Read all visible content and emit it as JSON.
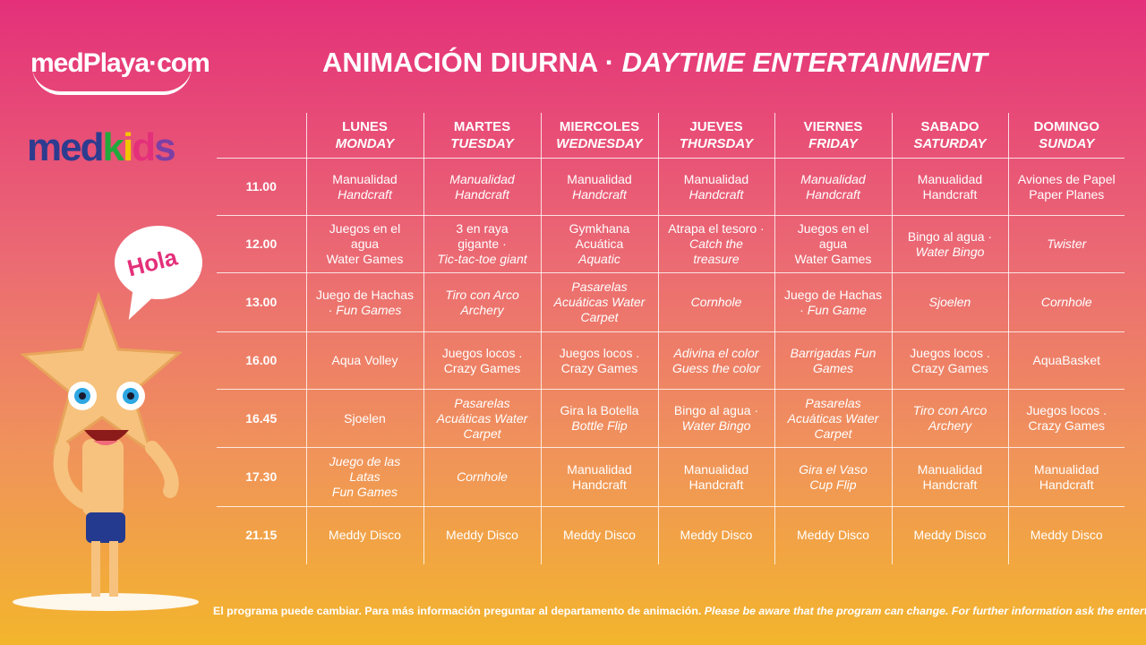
{
  "logo": {
    "brand": "medPlaya·com",
    "kids_med": "med",
    "kids_k": "k",
    "kids_i": "i",
    "kids_d": "d",
    "kids_s": "s"
  },
  "bubble_text": "Hola",
  "title": {
    "spanish": "ANIMACIÓN DIURNA · ",
    "english": "DAYTIME ENTERTAINMENT"
  },
  "days": [
    {
      "es": "LUNES",
      "en": "MONDAY"
    },
    {
      "es": "MARTES",
      "en": "TUESDAY"
    },
    {
      "es": "MIERCOLES",
      "en": "WEDNESDAY"
    },
    {
      "es": "JUEVES",
      "en": "THURSDAY"
    },
    {
      "es": "VIERNES",
      "en": "FRIDAY"
    },
    {
      "es": "SABADO",
      "en": "SATURDAY"
    },
    {
      "es": "DOMINGO",
      "en": "SUNDAY"
    }
  ],
  "rows": [
    {
      "time": "11.00",
      "cells": [
        {
          "lines": [
            {
              "t": "Manualidad",
              "i": false
            },
            {
              "t": "Handcraft",
              "i": true
            }
          ]
        },
        {
          "lines": [
            {
              "t": "Manualidad",
              "i": true
            },
            {
              "t": "Handcraft",
              "i": true
            }
          ]
        },
        {
          "lines": [
            {
              "t": "Manualidad",
              "i": false
            },
            {
              "t": "Handcraft",
              "i": true
            }
          ]
        },
        {
          "lines": [
            {
              "t": "Manualidad",
              "i": false
            },
            {
              "t": "Handcraft",
              "i": true
            }
          ]
        },
        {
          "lines": [
            {
              "t": "Manualidad",
              "i": true
            },
            {
              "t": "Handcraft",
              "i": true
            }
          ]
        },
        {
          "lines": [
            {
              "t": "Manualidad",
              "i": false
            },
            {
              "t": "Handcraft",
              "i": false
            }
          ]
        },
        {
          "lines": [
            {
              "t": "Aviones de Papel",
              "i": false
            },
            {
              "t": "Paper Planes",
              "i": false
            }
          ]
        }
      ]
    },
    {
      "time": "12.00",
      "cells": [
        {
          "lines": [
            {
              "t": "Juegos en el",
              "i": false
            },
            {
              "t": "agua",
              "i": false
            },
            {
              "t": "Water Games",
              "i": false
            }
          ]
        },
        {
          "lines": [
            {
              "t": "3 en raya",
              "i": false
            },
            {
              "t": "gigante ·",
              "i": false
            },
            {
              "t": "Tic-tac-toe giant",
              "i": true
            }
          ]
        },
        {
          "lines": [
            {
              "t": "Gymkhana",
              "i": false
            },
            {
              "t": "Acuática",
              "i": false
            },
            {
              "t": "Aquatic",
              "i": true
            }
          ]
        },
        {
          "lines": [
            {
              "t": "Atrapa el tesoro ·",
              "i": false
            },
            {
              "t": "Catch the",
              "i": true
            },
            {
              "t": "treasure",
              "i": true
            }
          ]
        },
        {
          "lines": [
            {
              "t": "Juegos en el",
              "i": false
            },
            {
              "t": "agua",
              "i": false
            },
            {
              "t": "Water Games",
              "i": false
            }
          ]
        },
        {
          "lines": [
            {
              "t": "Bingo al agua ·",
              "i": false
            },
            {
              "t": "Water Bingo",
              "i": true
            }
          ]
        },
        {
          "lines": [
            {
              "t": "Twister",
              "i": true
            }
          ]
        }
      ]
    },
    {
      "time": "13.00",
      "cells": [
        {
          "lines": [
            {
              "t": "Juego de Hachas",
              "i": false
            },
            {
              "t": "· Fun Games",
              "i": true
            }
          ]
        },
        {
          "lines": [
            {
              "t": "Tiro con Arco",
              "i": true
            },
            {
              "t": "Archery",
              "i": true
            }
          ]
        },
        {
          "lines": [
            {
              "t": "Pasarelas",
              "i": true
            },
            {
              "t": "Acuáticas Water",
              "i": true
            },
            {
              "t": "Carpet",
              "i": true
            }
          ]
        },
        {
          "lines": [
            {
              "t": "Cornhole",
              "i": true
            }
          ]
        },
        {
          "lines": [
            {
              "t": "Juego de Hachas",
              "i": false
            },
            {
              "t": "· Fun Game",
              "i": true
            }
          ]
        },
        {
          "lines": [
            {
              "t": "Sjoelen",
              "i": true
            }
          ]
        },
        {
          "lines": [
            {
              "t": "Cornhole",
              "i": true
            }
          ]
        }
      ]
    },
    {
      "time": "16.00",
      "cells": [
        {
          "lines": [
            {
              "t": "Aqua Volley",
              "i": false
            }
          ]
        },
        {
          "lines": [
            {
              "t": "Juegos locos .",
              "i": false
            },
            {
              "t": "Crazy Games",
              "i": false
            }
          ]
        },
        {
          "lines": [
            {
              "t": "Juegos locos .",
              "i": false
            },
            {
              "t": "Crazy Games",
              "i": false
            }
          ]
        },
        {
          "lines": [
            {
              "t": "Adivina el color",
              "i": true
            },
            {
              "t": "Guess the color",
              "i": true
            }
          ]
        },
        {
          "lines": [
            {
              "t": "Barrigadas  Fun",
              "i": true
            },
            {
              "t": "Games",
              "i": true
            }
          ]
        },
        {
          "lines": [
            {
              "t": "Juegos locos .",
              "i": false
            },
            {
              "t": "Crazy Games",
              "i": false
            }
          ]
        },
        {
          "lines": [
            {
              "t": "AquaBasket",
              "i": false
            }
          ]
        }
      ]
    },
    {
      "time": "16.45",
      "cells": [
        {
          "lines": [
            {
              "t": "Sjoelen",
              "i": false
            }
          ]
        },
        {
          "lines": [
            {
              "t": "Pasarelas",
              "i": true
            },
            {
              "t": "Acuáticas Water",
              "i": true
            },
            {
              "t": "Carpet",
              "i": true
            }
          ]
        },
        {
          "lines": [
            {
              "t": "Gira la Botella",
              "i": false
            },
            {
              "t": "Bottle Flip",
              "i": true
            }
          ]
        },
        {
          "lines": [
            {
              "t": "Bingo al agua ·",
              "i": false
            },
            {
              "t": "Water Bingo",
              "i": true
            }
          ]
        },
        {
          "lines": [
            {
              "t": "Pasarelas",
              "i": true
            },
            {
              "t": "Acuáticas Water",
              "i": true
            },
            {
              "t": "Carpet",
              "i": true
            }
          ]
        },
        {
          "lines": [
            {
              "t": "Tiro con Arco",
              "i": true
            },
            {
              "t": "Archery",
              "i": true
            }
          ]
        },
        {
          "lines": [
            {
              "t": "Juegos locos .",
              "i": false
            },
            {
              "t": "Crazy Games",
              "i": false
            }
          ]
        }
      ]
    },
    {
      "time": "17.30",
      "cells": [
        {
          "lines": [
            {
              "t": "Juego de las",
              "i": true
            },
            {
              "t": "Latas",
              "i": true
            },
            {
              "t": "Fun Games",
              "i": true
            }
          ]
        },
        {
          "lines": [
            {
              "t": "Cornhole",
              "i": true
            }
          ]
        },
        {
          "lines": [
            {
              "t": "Manualidad",
              "i": false
            },
            {
              "t": "Handcraft",
              "i": false
            }
          ]
        },
        {
          "lines": [
            {
              "t": "Manualidad",
              "i": false
            },
            {
              "t": "Handcraft",
              "i": false
            }
          ]
        },
        {
          "lines": [
            {
              "t": "Gira el Vaso",
              "i": true
            },
            {
              "t": "Cup Flip",
              "i": true
            }
          ]
        },
        {
          "lines": [
            {
              "t": "Manualidad",
              "i": false
            },
            {
              "t": "Handcraft",
              "i": false
            }
          ]
        },
        {
          "lines": [
            {
              "t": "Manualidad",
              "i": false
            },
            {
              "t": "Handcraft",
              "i": false
            }
          ]
        }
      ]
    },
    {
      "time": "21.15",
      "cells": [
        {
          "lines": [
            {
              "t": "Meddy Disco",
              "i": false
            }
          ]
        },
        {
          "lines": [
            {
              "t": "Meddy Disco",
              "i": false
            }
          ]
        },
        {
          "lines": [
            {
              "t": "Meddy Disco",
              "i": false
            }
          ]
        },
        {
          "lines": [
            {
              "t": "Meddy Disco",
              "i": false
            }
          ]
        },
        {
          "lines": [
            {
              "t": "Meddy Disco",
              "i": false
            }
          ]
        },
        {
          "lines": [
            {
              "t": "Meddy Disco",
              "i": false
            }
          ]
        },
        {
          "lines": [
            {
              "t": "Meddy Disco",
              "i": false
            }
          ]
        }
      ]
    }
  ],
  "footer": {
    "spanish": "El programa puede cambiar. Para más información preguntar  al departamento de animación. ",
    "english": "Please be aware that the program can change. For further information ask the entertainers."
  },
  "colors": {
    "gradient_top": "#e4307a",
    "gradient_bottom": "#f3b52c",
    "text": "#ffffff"
  }
}
